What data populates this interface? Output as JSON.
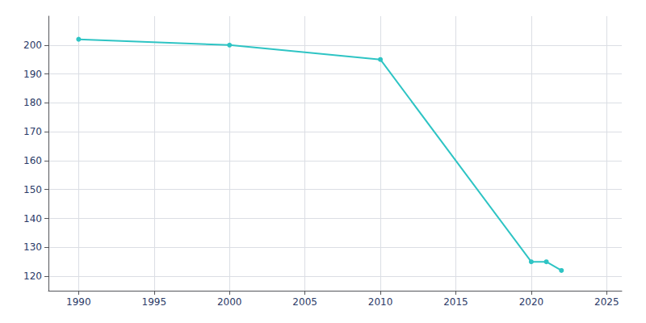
{
  "chart_data": {
    "type": "line",
    "x": [
      1990,
      2000,
      2010,
      2020,
      2021,
      2022
    ],
    "values": [
      202,
      200,
      195,
      125,
      125,
      122
    ],
    "color": "#2EC4C4",
    "marker": "circle",
    "xlim": [
      1988,
      2026
    ],
    "ylim": [
      115,
      210
    ],
    "xticks": [
      1990,
      1995,
      2000,
      2005,
      2010,
      2015,
      2020,
      2025
    ],
    "yticks": [
      120,
      130,
      140,
      150,
      160,
      170,
      180,
      190,
      200
    ],
    "grid": true
  }
}
